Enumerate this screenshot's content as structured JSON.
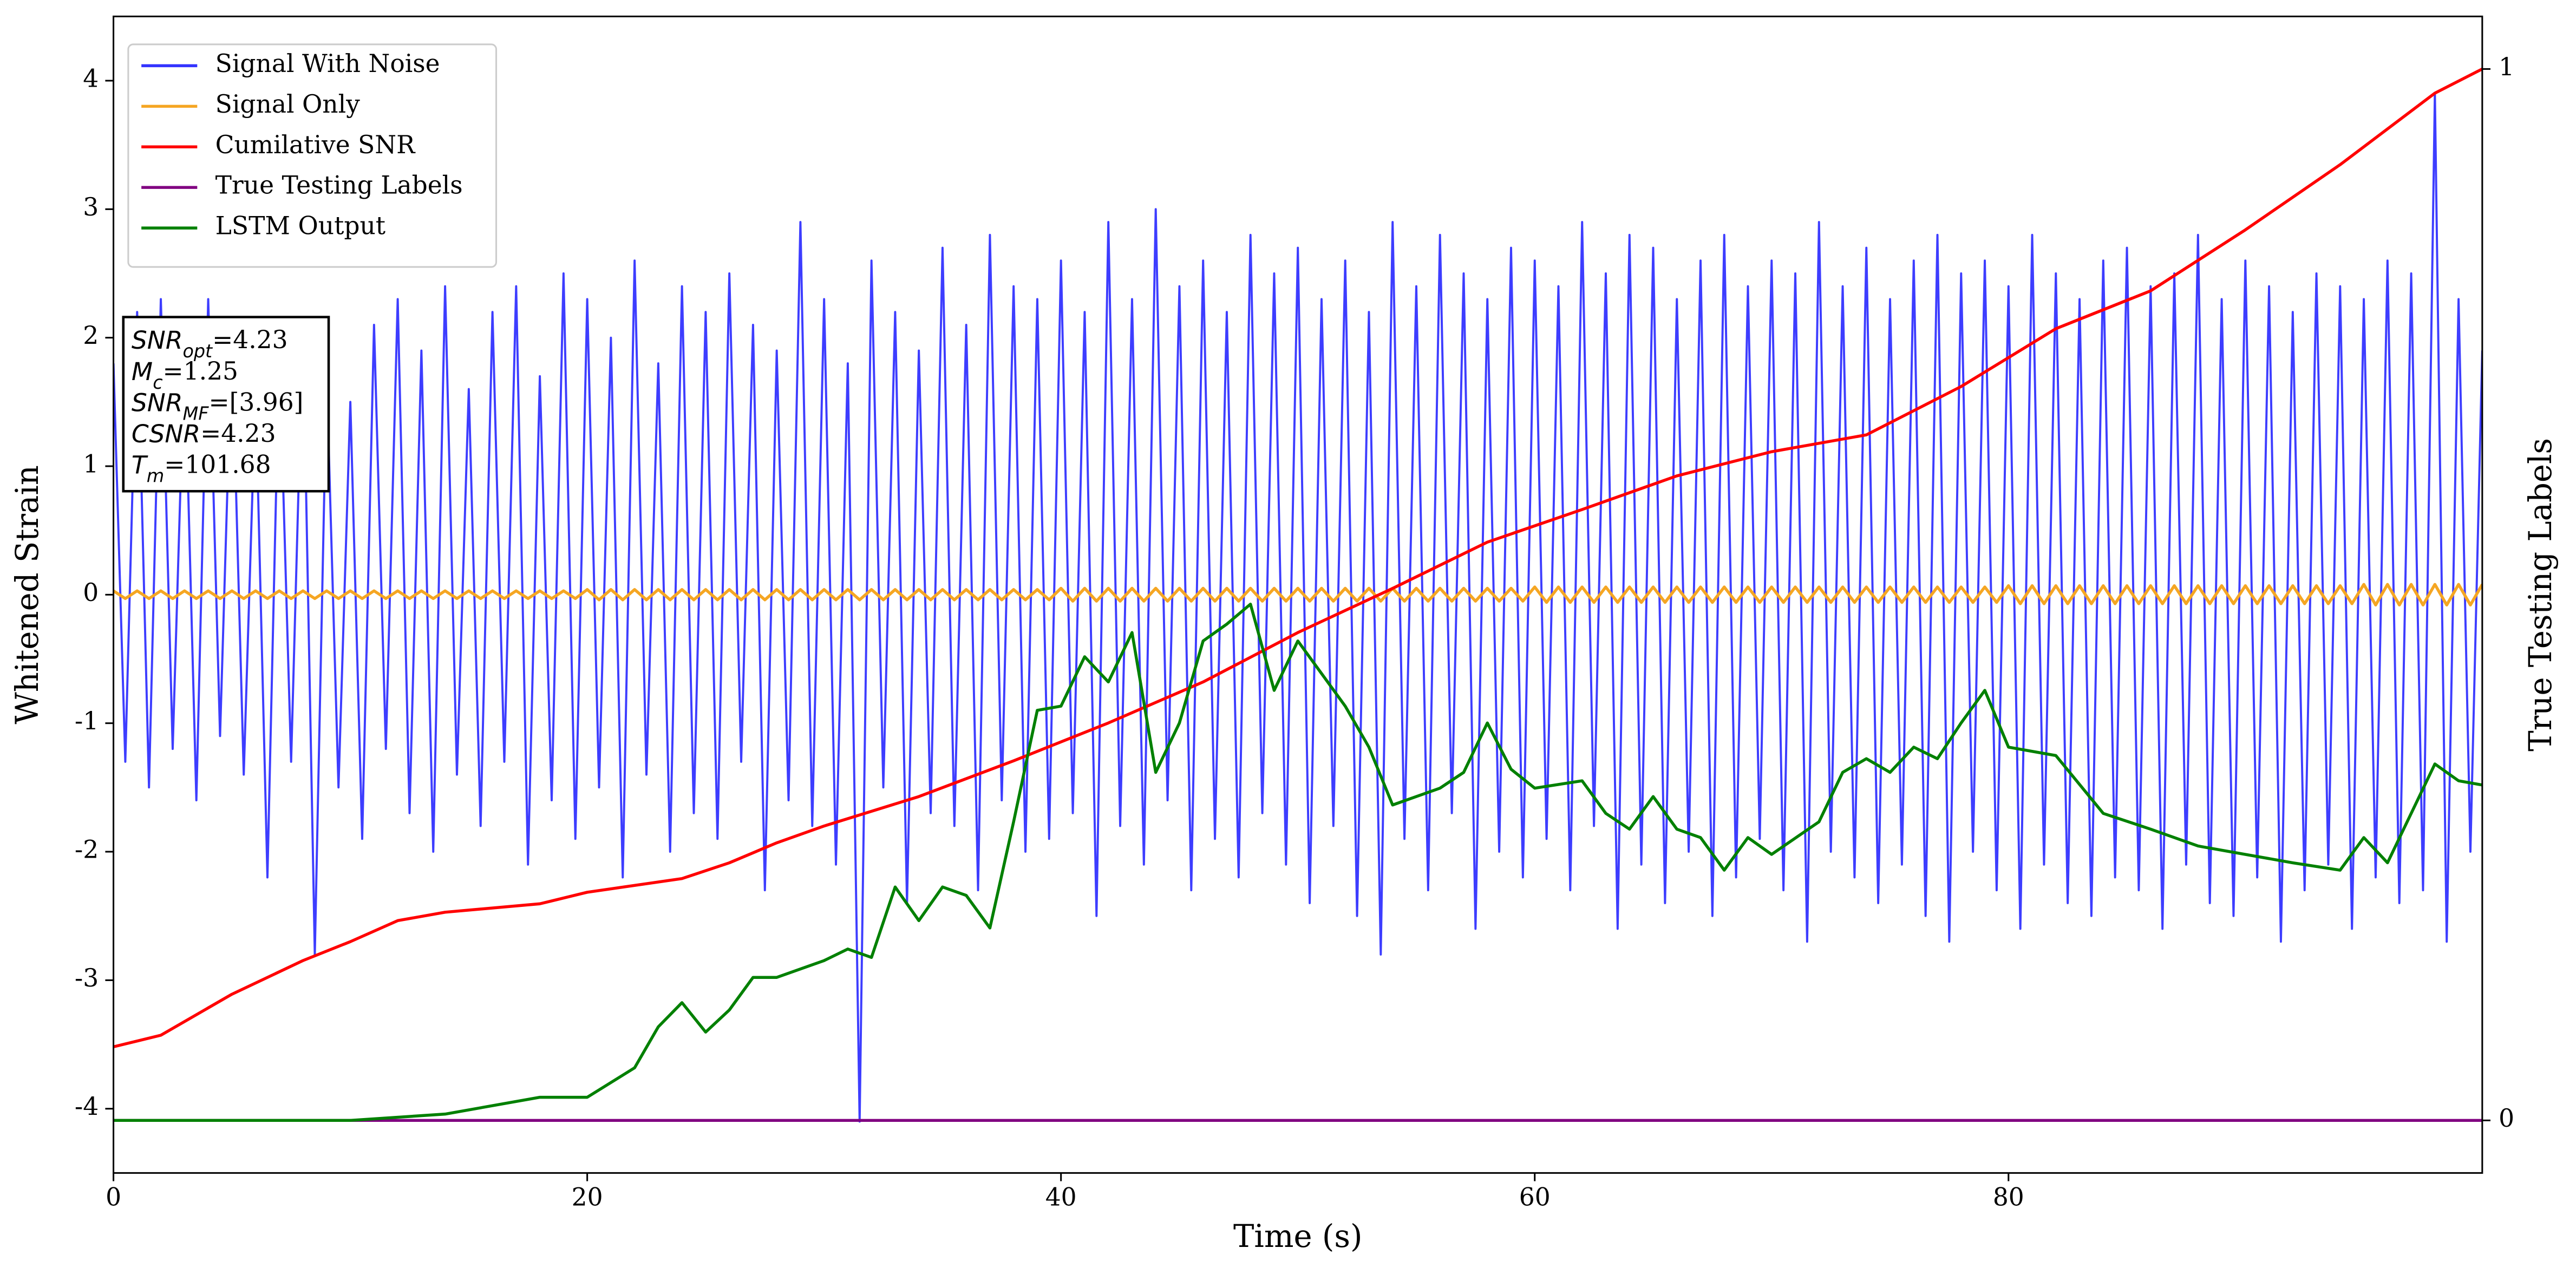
{
  "chart_data": {
    "type": "line",
    "xlabel": "Time (s)",
    "ylabel": "Whitened Strain",
    "y2label": "True Testing Labels",
    "xlim": [
      0,
      100
    ],
    "ylim": [
      -4.5,
      4.5
    ],
    "y2lim": [
      -0.05,
      1.05
    ],
    "xticks": [
      0,
      20,
      40,
      60,
      80
    ],
    "yticks": [
      -4,
      -3,
      -2,
      -1,
      0,
      1,
      2,
      3,
      4
    ],
    "y2ticks": [
      0,
      1
    ],
    "legend": "upper left",
    "x": [
      0,
      0.5,
      1,
      1.5,
      2,
      2.5,
      3,
      3.5,
      4,
      4.5,
      5,
      5.5,
      6,
      6.5,
      7,
      7.5,
      8,
      8.5,
      9,
      9.5,
      10,
      10.5,
      11,
      11.5,
      12,
      12.5,
      13,
      13.5,
      14,
      14.5,
      15,
      15.5,
      16,
      16.5,
      17,
      17.5,
      18,
      18.5,
      19,
      19.5,
      20,
      20.5,
      21,
      21.5,
      22,
      22.5,
      23,
      23.5,
      24,
      24.5,
      25,
      25.5,
      26,
      26.5,
      27,
      27.5,
      28,
      28.5,
      29,
      29.5,
      30,
      30.5,
      31,
      31.5,
      32,
      32.5,
      33,
      33.5,
      34,
      34.5,
      35,
      35.5,
      36,
      36.5,
      37,
      37.5,
      38,
      38.5,
      39,
      39.5,
      40,
      40.5,
      41,
      41.5,
      42,
      42.5,
      43,
      43.5,
      44,
      44.5,
      45,
      45.5,
      46,
      46.5,
      47,
      47.5,
      48,
      48.5,
      49,
      49.5,
      50,
      50.5,
      51,
      51.5,
      52,
      52.5,
      53,
      53.5,
      54,
      54.5,
      55,
      55.5,
      56,
      56.5,
      57,
      57.5,
      58,
      58.5,
      59,
      59.5,
      60,
      60.5,
      61,
      61.5,
      62,
      62.5,
      63,
      63.5,
      64,
      64.5,
      65,
      65.5,
      66,
      66.5,
      67,
      67.5,
      68,
      68.5,
      69,
      69.5,
      70,
      70.5,
      71,
      71.5,
      72,
      72.5,
      73,
      73.5,
      74,
      74.5,
      75,
      75.5,
      76,
      76.5,
      77,
      77.5,
      78,
      78.5,
      79,
      79.5,
      80,
      80.5,
      81,
      81.5,
      82,
      82.5,
      83,
      83.5,
      84,
      84.5,
      85,
      85.5,
      86,
      86.5,
      87,
      87.5,
      88,
      88.5,
      89,
      89.5,
      90,
      90.5,
      91,
      91.5,
      92,
      92.5,
      93,
      93.5,
      94,
      94.5,
      95,
      95.5,
      96,
      96.5,
      97,
      97.5,
      98,
      98.5,
      99,
      99.5,
      100
    ],
    "series": [
      {
        "name": "Signal With Noise",
        "color": "#3333ff",
        "axis": "y",
        "values": [
          1.8,
          -1.3,
          2.2,
          -1.5,
          2.3,
          -1.2,
          1.9,
          -1.6,
          2.3,
          -1.1,
          2.0,
          -1.4,
          1.6,
          -2.2,
          1.9,
          -1.3,
          2.1,
          -2.8,
          1.7,
          -1.5,
          1.5,
          -1.9,
          2.1,
          -1.2,
          2.3,
          -1.7,
          1.9,
          -2.0,
          2.4,
          -1.4,
          1.6,
          -1.8,
          2.2,
          -1.3,
          2.4,
          -2.1,
          1.7,
          -1.6,
          2.5,
          -1.9,
          2.3,
          -1.5,
          2.0,
          -2.2,
          2.6,
          -1.4,
          1.8,
          -2.0,
          2.4,
          -1.7,
          2.2,
          -1.9,
          2.5,
          -1.3,
          2.1,
          -2.3,
          1.9,
          -1.6,
          2.9,
          -1.8,
          2.3,
          -2.1,
          1.8,
          -4.1,
          2.6,
          -1.5,
          2.2,
          -2.4,
          1.9,
          -1.7,
          2.7,
          -1.8,
          2.1,
          -2.3,
          2.8,
          -1.6,
          2.4,
          -2.0,
          2.3,
          -1.9,
          2.6,
          -1.7,
          2.2,
          -2.5,
          2.9,
          -1.8,
          2.3,
          -2.1,
          3.0,
          -1.6,
          2.4,
          -2.3,
          2.6,
          -1.9,
          2.2,
          -2.2,
          2.8,
          -1.7,
          2.5,
          -2.1,
          2.7,
          -2.4,
          2.3,
          -1.8,
          2.6,
          -2.5,
          2.2,
          -2.8,
          2.9,
          -1.9,
          2.4,
          -2.3,
          2.8,
          -1.7,
          2.5,
          -2.6,
          2.3,
          -2.0,
          2.7,
          -2.2,
          2.6,
          -1.9,
          2.4,
          -2.3,
          2.9,
          -1.8,
          2.5,
          -2.6,
          2.8,
          -2.1,
          2.7,
          -2.4,
          2.3,
          -2.0,
          2.6,
          -2.5,
          2.8,
          -2.2,
          2.4,
          -1.9,
          2.6,
          -2.3,
          2.5,
          -2.7,
          2.9,
          -2.0,
          2.4,
          -2.2,
          2.7,
          -2.4,
          2.3,
          -2.1,
          2.6,
          -2.5,
          2.8,
          -2.7,
          2.5,
          -2.0,
          2.6,
          -2.3,
          2.4,
          -2.6,
          2.8,
          -2.1,
          2.5,
          -2.4,
          2.3,
          -2.5,
          2.6,
          -2.2,
          2.7,
          -2.3,
          2.4,
          -2.6,
          2.5,
          -2.1,
          2.8,
          -2.4,
          2.3,
          -2.5,
          2.6,
          -2.2,
          2.4,
          -2.7,
          2.2,
          -2.3,
          2.5,
          -2.1,
          2.4,
          -2.6,
          2.3,
          -2.2,
          2.6,
          -2.4,
          2.5,
          -2.3,
          3.9,
          -2.7,
          2.3,
          -2.0,
          1.9
        ]
      },
      {
        "name": "Signal Only",
        "color": "#f5a623",
        "axis": "y",
        "values": [
          0.03,
          -0.03,
          0.03,
          -0.03,
          0.03,
          -0.03,
          0.03,
          -0.03,
          0.03,
          -0.03,
          0.03,
          -0.03,
          0.03,
          -0.03,
          0.03,
          -0.03,
          0.03,
          -0.03,
          0.03,
          -0.03,
          0.03,
          -0.03,
          0.03,
          -0.03,
          0.03,
          -0.03,
          0.03,
          -0.03,
          0.03,
          -0.03,
          0.03,
          -0.03,
          0.03,
          -0.03,
          0.03,
          -0.03,
          0.03,
          -0.03,
          0.03,
          -0.03,
          0.04,
          -0.04,
          0.04,
          -0.04,
          0.04,
          -0.04,
          0.04,
          -0.04,
          0.04,
          -0.04,
          0.04,
          -0.04,
          0.04,
          -0.04,
          0.04,
          -0.04,
          0.04,
          -0.04,
          0.04,
          -0.04,
          0.04,
          -0.04,
          0.04,
          -0.04,
          0.04,
          -0.04,
          0.04,
          -0.04,
          0.04,
          -0.04,
          0.04,
          -0.04,
          0.04,
          -0.04,
          0.04,
          -0.04,
          0.04,
          -0.04,
          0.04,
          -0.04,
          0.05,
          -0.05,
          0.05,
          -0.05,
          0.05,
          -0.05,
          0.05,
          -0.05,
          0.05,
          -0.05,
          0.05,
          -0.05,
          0.05,
          -0.05,
          0.05,
          -0.05,
          0.05,
          -0.05,
          0.05,
          -0.05,
          0.05,
          -0.05,
          0.05,
          -0.05,
          0.05,
          -0.05,
          0.05,
          -0.05,
          0.05,
          -0.05,
          0.05,
          -0.05,
          0.05,
          -0.05,
          0.05,
          -0.05,
          0.05,
          -0.05,
          0.05,
          -0.05,
          0.06,
          -0.06,
          0.06,
          -0.06,
          0.06,
          -0.06,
          0.06,
          -0.06,
          0.06,
          -0.06,
          0.06,
          -0.06,
          0.06,
          -0.06,
          0.06,
          -0.06,
          0.06,
          -0.06,
          0.06,
          -0.06,
          0.06,
          -0.06,
          0.06,
          -0.06,
          0.06,
          -0.06,
          0.06,
          -0.06,
          0.06,
          -0.06,
          0.06,
          -0.06,
          0.06,
          -0.06,
          0.06,
          -0.06,
          0.06,
          -0.06,
          0.06,
          -0.06,
          0.07,
          -0.07,
          0.07,
          -0.07,
          0.07,
          -0.07,
          0.07,
          -0.07,
          0.07,
          -0.07,
          0.07,
          -0.07,
          0.07,
          -0.07,
          0.07,
          -0.07,
          0.07,
          -0.07,
          0.07,
          -0.07,
          0.07,
          -0.07,
          0.07,
          -0.07,
          0.07,
          -0.07,
          0.07,
          -0.07,
          0.07,
          -0.07,
          0.08,
          -0.08,
          0.08,
          -0.08,
          0.08,
          -0.08,
          0.08,
          -0.08,
          0.08,
          -0.08,
          0.08
        ]
      },
      {
        "name": "Cumilative SNR",
        "color": "#ff0000",
        "axis": "y2",
        "x": [
          0,
          2,
          5,
          8,
          10,
          12,
          14,
          18,
          20,
          24,
          26,
          28,
          30,
          34,
          38,
          42,
          46,
          50,
          54,
          58,
          62,
          66,
          70,
          74,
          78,
          82,
          86,
          90,
          94,
          98,
          100
        ],
        "values": [
          0.07,
          0.081,
          0.12,
          0.152,
          0.17,
          0.19,
          0.198,
          0.206,
          0.217,
          0.23,
          0.245,
          0.264,
          0.28,
          0.308,
          0.342,
          0.378,
          0.417,
          0.464,
          0.506,
          0.55,
          0.581,
          0.613,
          0.636,
          0.652,
          0.698,
          0.753,
          0.789,
          0.847,
          0.909,
          0.977,
          1.0
        ]
      },
      {
        "name": "True Testing Labels",
        "color": "#800080",
        "axis": "y2",
        "x": [
          0,
          100
        ],
        "values": [
          0,
          0
        ]
      },
      {
        "name": "LSTM Output",
        "color": "#008000",
        "axis": "y2",
        "x": [
          0,
          10,
          14,
          18,
          20,
          22,
          23,
          24,
          25,
          26,
          27,
          28,
          30,
          31,
          32,
          33,
          34,
          35,
          36,
          37,
          38,
          39,
          40,
          41,
          42,
          43,
          44,
          45,
          46,
          47,
          48,
          49,
          50,
          51,
          52,
          53,
          54,
          55,
          56,
          57,
          58,
          59,
          60,
          62,
          63,
          64,
          65,
          66,
          67,
          68,
          69,
          70,
          72,
          73,
          74,
          75,
          76,
          77,
          78,
          79,
          80,
          82,
          84,
          86,
          88,
          90,
          92,
          94,
          95,
          96,
          98,
          99,
          100
        ],
        "values": [
          0,
          0,
          0.006,
          0.022,
          0.022,
          0.05,
          0.089,
          0.112,
          0.084,
          0.105,
          0.136,
          0.136,
          0.152,
          0.163,
          0.155,
          0.222,
          0.19,
          0.222,
          0.214,
          0.183,
          0.284,
          0.39,
          0.394,
          0.441,
          0.417,
          0.464,
          0.331,
          0.378,
          0.456,
          0.472,
          0.491,
          0.409,
          0.456,
          0.425,
          0.394,
          0.355,
          0.3,
          0.308,
          0.316,
          0.331,
          0.378,
          0.334,
          0.316,
          0.323,
          0.292,
          0.277,
          0.308,
          0.277,
          0.269,
          0.238,
          0.269,
          0.253,
          0.284,
          0.331,
          0.344,
          0.331,
          0.355,
          0.344,
          0.378,
          0.409,
          0.355,
          0.347,
          0.292,
          0.277,
          0.261,
          0.253,
          0.245,
          0.238,
          0.269,
          0.245,
          0.339,
          0.323,
          0.319
        ]
      }
    ],
    "annotation": [
      {
        "symbol": "SNR",
        "subscript": "opt",
        "text": "=4.23"
      },
      {
        "symbol": "M",
        "subscript": "c",
        "text": "=1.25"
      },
      {
        "symbol": "SNR",
        "subscript": "MF",
        "text": "=[3.96]"
      },
      {
        "symbol": "CSNR",
        "text": "=4.23"
      },
      {
        "symbol": "T",
        "subscript": "m",
        "text": "=101.68"
      }
    ]
  }
}
